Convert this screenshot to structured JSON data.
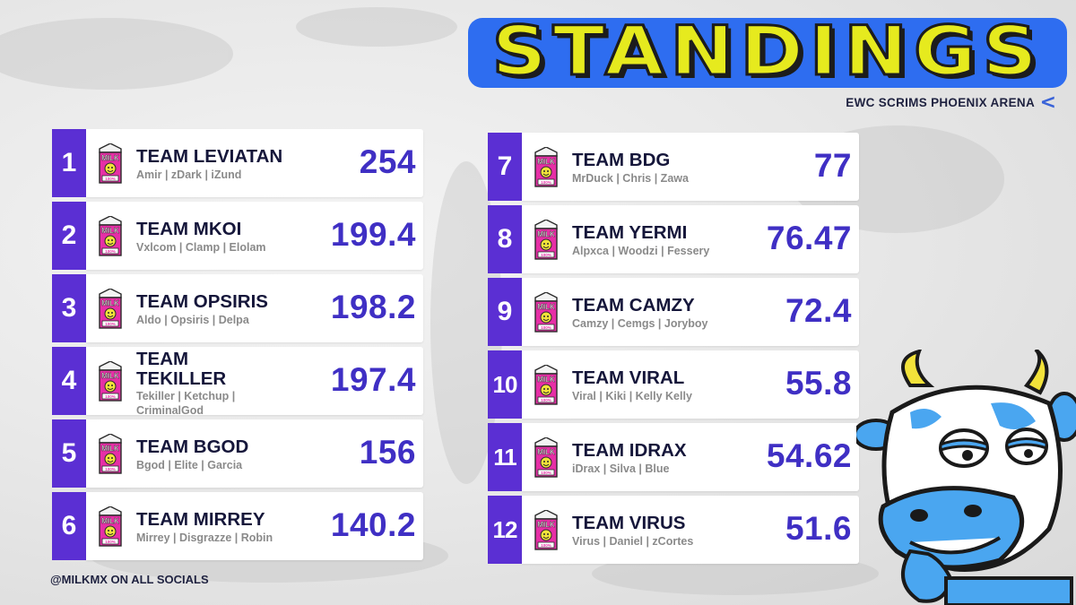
{
  "header": {
    "title": "STANDINGS",
    "subtitle": "EWC SCRIMS PHOENIX ARENA",
    "subtitle_arrow": "<"
  },
  "colors": {
    "accent_purple": "#5b2fd3",
    "score_blue": "#3f2fc4",
    "title_yellow": "#e6ea1e",
    "title_blue": "#2e6df0",
    "carton_pink": "#e62fa6"
  },
  "carton": {
    "label": "MILK",
    "sub": "100%"
  },
  "standings": [
    {
      "rank": "1",
      "team": "TEAM LEVIATAN",
      "players": "Amir | zDark | iZund",
      "score": "254"
    },
    {
      "rank": "2",
      "team": "TEAM MKOI",
      "players": "Vxlcom | Clamp | Elolam",
      "score": "199.4"
    },
    {
      "rank": "3",
      "team": "TEAM OPSIRIS",
      "players": "Aldo | Opsiris | Delpa",
      "score": "198.2"
    },
    {
      "rank": "4",
      "team": "TEAM TEKILLER",
      "players": "Tekiller | Ketchup | CriminalGod",
      "score": "197.4"
    },
    {
      "rank": "5",
      "team": "TEAM BGOD",
      "players": "Bgod | Elite | Garcia",
      "score": "156"
    },
    {
      "rank": "6",
      "team": "TEAM MIRREY",
      "players": "Mirrey | Disgrazze | Robin",
      "score": "140.2"
    },
    {
      "rank": "7",
      "team": "TEAM BDG",
      "players": "MrDuck | Chris | Zawa",
      "score": "77"
    },
    {
      "rank": "8",
      "team": "TEAM YERMI",
      "players": "Alpxca | Woodzi | Fessery",
      "score": "76.47"
    },
    {
      "rank": "9",
      "team": "TEAM CAMZY",
      "players": "Camzy | Cemgs | Joryboy",
      "score": "72.4"
    },
    {
      "rank": "10",
      "team": "TEAM VIRAL",
      "players": "Viral | Kiki | Kelly Kelly",
      "score": "55.8"
    },
    {
      "rank": "11",
      "team": "TEAM IDRAX",
      "players": "iDrax | Silva | Blue",
      "score": "54.62"
    },
    {
      "rank": "12",
      "team": "TEAM VIRUS",
      "players": "Virus | Daniel | zCortes",
      "score": "51.6"
    }
  ],
  "footer": {
    "social": "@MILKMX ON ALL SOCIALS"
  },
  "icons": {
    "mascot": "cow-mascot-icon",
    "carton": "milk-carton-icon"
  }
}
